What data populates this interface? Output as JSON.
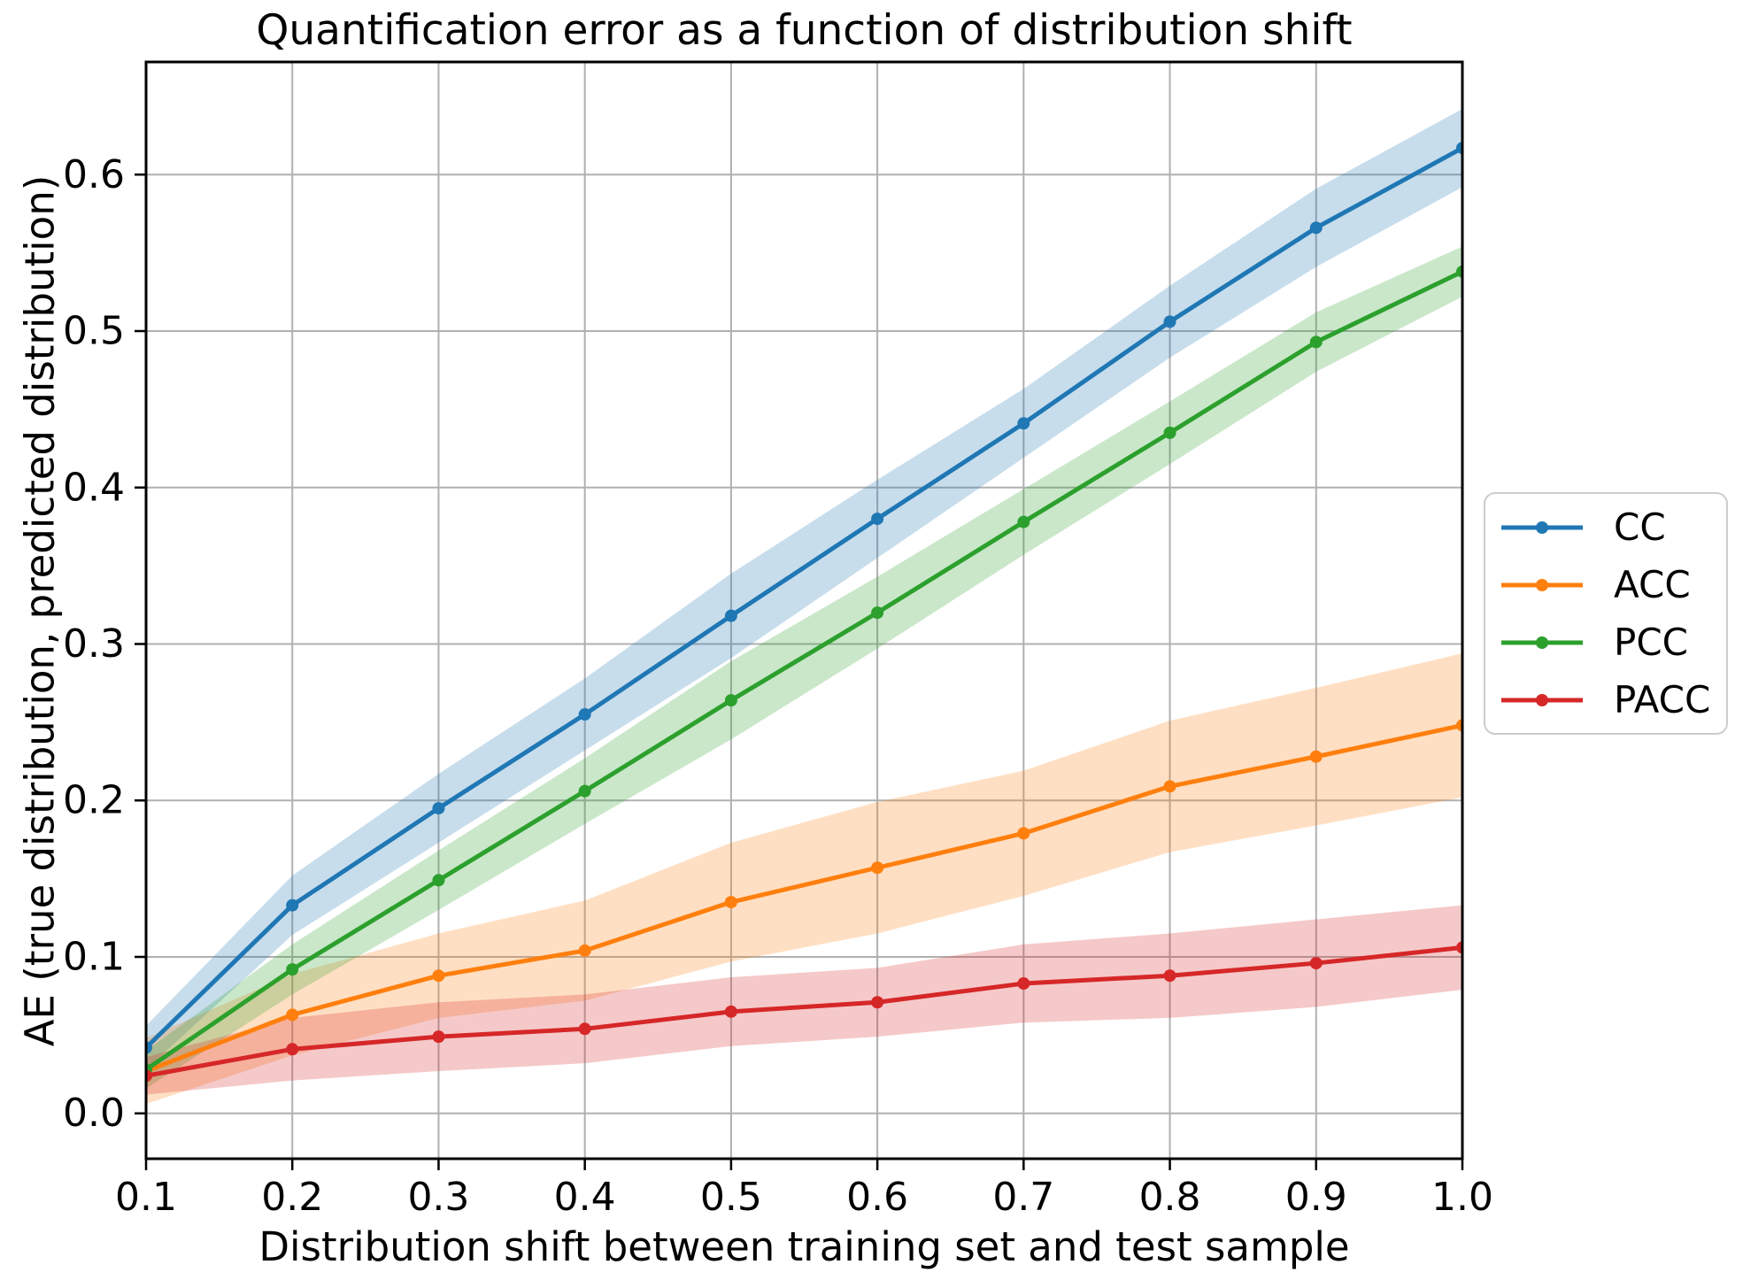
{
  "chart_data": {
    "type": "line",
    "title": "Quantification error as a function of distribution shift",
    "xlabel": "Distribution shift between training set and test sample",
    "ylabel": "AE (true distribution, predicted distribution)",
    "x": [
      0.1,
      0.2,
      0.3,
      0.4,
      0.5,
      0.6,
      0.7,
      0.8,
      0.9,
      1.0
    ],
    "xticks": [
      "0.1",
      "0.2",
      "0.3",
      "0.4",
      "0.5",
      "0.6",
      "0.7",
      "0.8",
      "0.9",
      "1.0"
    ],
    "yticks": [
      "0.0",
      "0.1",
      "0.2",
      "0.3",
      "0.4",
      "0.5",
      "0.6"
    ],
    "xlim": [
      0.1,
      1.0
    ],
    "ylim": [
      -0.029,
      0.672
    ],
    "grid": true,
    "grid_color": "#b0b0b0",
    "band_alpha": 0.25,
    "legend_position": "outside-right",
    "series": [
      {
        "name": "CC",
        "color": "#1f77b4",
        "values": [
          0.042,
          0.133,
          0.195,
          0.255,
          0.318,
          0.38,
          0.441,
          0.506,
          0.566,
          0.617
        ],
        "band_lower": [
          0.028,
          0.114,
          0.173,
          0.232,
          0.291,
          0.355,
          0.419,
          0.483,
          0.541,
          0.592
        ],
        "band_upper": [
          0.056,
          0.152,
          0.217,
          0.278,
          0.345,
          0.405,
          0.463,
          0.529,
          0.591,
          0.642
        ]
      },
      {
        "name": "ACC",
        "color": "#ff7f0e",
        "values": [
          0.027,
          0.063,
          0.088,
          0.104,
          0.135,
          0.157,
          0.179,
          0.209,
          0.228,
          0.248
        ],
        "band_lower": [
          0.006,
          0.037,
          0.061,
          0.072,
          0.097,
          0.115,
          0.139,
          0.167,
          0.184,
          0.202
        ],
        "band_upper": [
          0.048,
          0.089,
          0.115,
          0.136,
          0.173,
          0.199,
          0.219,
          0.251,
          0.272,
          0.294
        ]
      },
      {
        "name": "PCC",
        "color": "#2ca02c",
        "values": [
          0.028,
          0.092,
          0.149,
          0.206,
          0.264,
          0.32,
          0.378,
          0.435,
          0.493,
          0.538
        ],
        "band_lower": [
          0.016,
          0.076,
          0.13,
          0.185,
          0.239,
          0.297,
          0.357,
          0.415,
          0.474,
          0.522
        ],
        "band_upper": [
          0.04,
          0.108,
          0.168,
          0.227,
          0.289,
          0.343,
          0.399,
          0.455,
          0.512,
          0.554
        ]
      },
      {
        "name": "PACC",
        "color": "#d62728",
        "values": [
          0.024,
          0.041,
          0.049,
          0.054,
          0.065,
          0.071,
          0.083,
          0.088,
          0.096,
          0.106
        ],
        "band_lower": [
          0.012,
          0.021,
          0.027,
          0.032,
          0.043,
          0.049,
          0.058,
          0.061,
          0.068,
          0.079
        ],
        "band_upper": [
          0.036,
          0.061,
          0.071,
          0.076,
          0.087,
          0.093,
          0.108,
          0.115,
          0.124,
          0.133
        ]
      }
    ]
  }
}
